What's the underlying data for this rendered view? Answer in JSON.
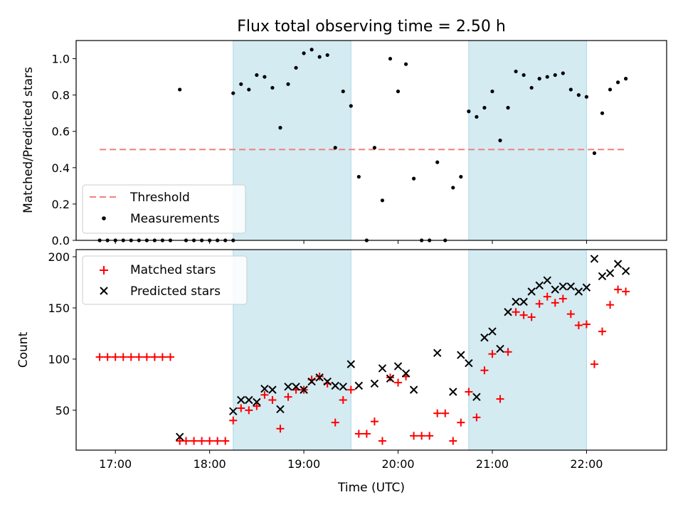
{
  "chart_data": {
    "title": "Flux total observing time = 2.50 h",
    "xlabel": "Time (UTC)",
    "x_ticks": [
      "17:00",
      "18:00",
      "19:00",
      "20:00",
      "21:00",
      "22:00"
    ],
    "x_range": [
      "16:35",
      "22:51"
    ],
    "shaded_intervals": [
      [
        "18:15",
        "19:30"
      ],
      [
        "20:45",
        "22:00"
      ]
    ],
    "shade_color": "#d4ebf2",
    "panels": [
      {
        "type": "scatter",
        "ylabel": "Matched/Predicted stars",
        "ylim": [
          0,
          1.1
        ],
        "yticks": [
          0.0,
          0.2,
          0.4,
          0.6,
          0.8,
          1.0
        ],
        "legend_position": "lower-left",
        "threshold": {
          "name": "Threshold",
          "value": 0.5,
          "x_start": "16:50",
          "x_end": "22:26",
          "color": "#f08080"
        },
        "series": [
          {
            "name": "Measurements",
            "color": "#000000",
            "points": [
              [
                "16:50",
                0.0
              ],
              [
                "16:55",
                0.0
              ],
              [
                "17:00",
                0.0
              ],
              [
                "17:05",
                0.0
              ],
              [
                "17:10",
                0.0
              ],
              [
                "17:15",
                0.0
              ],
              [
                "17:20",
                0.0
              ],
              [
                "17:25",
                0.0
              ],
              [
                "17:30",
                0.0
              ],
              [
                "17:35",
                0.0
              ],
              [
                "17:41",
                0.83
              ],
              [
                "17:45",
                0.0
              ],
              [
                "17:50",
                0.0
              ],
              [
                "17:55",
                0.0
              ],
              [
                "18:00",
                0.0
              ],
              [
                "18:05",
                0.0
              ],
              [
                "18:10",
                0.0
              ],
              [
                "18:15",
                0.0
              ],
              [
                "18:15",
                0.81
              ],
              [
                "18:20",
                0.86
              ],
              [
                "18:25",
                0.83
              ],
              [
                "18:30",
                0.91
              ],
              [
                "18:35",
                0.9
              ],
              [
                "18:40",
                0.84
              ],
              [
                "18:45",
                0.62
              ],
              [
                "18:50",
                0.86
              ],
              [
                "18:55",
                0.95
              ],
              [
                "19:00",
                1.03
              ],
              [
                "19:05",
                1.05
              ],
              [
                "19:10",
                1.01
              ],
              [
                "19:15",
                1.02
              ],
              [
                "19:20",
                0.51
              ],
              [
                "19:25",
                0.82
              ],
              [
                "19:30",
                0.74
              ],
              [
                "19:35",
                0.35
              ],
              [
                "19:40",
                0.0
              ],
              [
                "19:45",
                0.51
              ],
              [
                "19:50",
                0.22
              ],
              [
                "19:55",
                1.0
              ],
              [
                "20:00",
                0.82
              ],
              [
                "20:05",
                0.97
              ],
              [
                "20:10",
                0.34
              ],
              [
                "20:15",
                0.0
              ],
              [
                "20:20",
                0.0
              ],
              [
                "20:25",
                0.43
              ],
              [
                "20:30",
                0.0
              ],
              [
                "20:35",
                0.29
              ],
              [
                "20:40",
                0.35
              ],
              [
                "20:45",
                0.71
              ],
              [
                "20:50",
                0.68
              ],
              [
                "20:55",
                0.73
              ],
              [
                "21:00",
                0.82
              ],
              [
                "21:05",
                0.55
              ],
              [
                "21:10",
                0.73
              ],
              [
                "21:15",
                0.93
              ],
              [
                "21:20",
                0.91
              ],
              [
                "21:25",
                0.84
              ],
              [
                "21:30",
                0.89
              ],
              [
                "21:35",
                0.9
              ],
              [
                "21:40",
                0.91
              ],
              [
                "21:45",
                0.92
              ],
              [
                "21:50",
                0.83
              ],
              [
                "21:55",
                0.8
              ],
              [
                "22:00",
                0.79
              ],
              [
                "22:05",
                0.48
              ],
              [
                "22:10",
                0.7
              ],
              [
                "22:15",
                0.83
              ],
              [
                "22:20",
                0.87
              ],
              [
                "22:25",
                0.89
              ]
            ]
          }
        ]
      },
      {
        "type": "scatter",
        "ylabel": "Count",
        "ylim": [
          11,
          207
        ],
        "yticks": [
          50,
          100,
          150,
          200
        ],
        "legend_position": "upper-left",
        "series": [
          {
            "name": "Matched stars",
            "marker": "+",
            "color": "#ff0000",
            "points": [
              [
                "16:50",
                102
              ],
              [
                "16:55",
                102
              ],
              [
                "17:00",
                102
              ],
              [
                "17:05",
                102
              ],
              [
                "17:10",
                102
              ],
              [
                "17:15",
                102
              ],
              [
                "17:20",
                102
              ],
              [
                "17:25",
                102
              ],
              [
                "17:30",
                102
              ],
              [
                "17:35",
                102
              ],
              [
                "17:41",
                20
              ],
              [
                "17:45",
                20
              ],
              [
                "17:50",
                20
              ],
              [
                "17:55",
                20
              ],
              [
                "18:00",
                20
              ],
              [
                "18:05",
                20
              ],
              [
                "18:10",
                20
              ],
              [
                "18:15",
                40
              ],
              [
                "18:20",
                52
              ],
              [
                "18:25",
                50
              ],
              [
                "18:30",
                54
              ],
              [
                "18:35",
                65
              ],
              [
                "18:40",
                60
              ],
              [
                "18:45",
                32
              ],
              [
                "18:50",
                63
              ],
              [
                "18:55",
                70
              ],
              [
                "19:00",
                70
              ],
              [
                "19:05",
                80
              ],
              [
                "19:10",
                83
              ],
              [
                "19:15",
                76
              ],
              [
                "19:20",
                38
              ],
              [
                "19:25",
                60
              ],
              [
                "19:30",
                70
              ],
              [
                "19:35",
                27
              ],
              [
                "19:40",
                27
              ],
              [
                "19:45",
                39
              ],
              [
                "19:50",
                20
              ],
              [
                "19:55",
                82
              ],
              [
                "20:00",
                77
              ],
              [
                "20:05",
                83
              ],
              [
                "20:10",
                25
              ],
              [
                "20:15",
                25
              ],
              [
                "20:20",
                25
              ],
              [
                "20:25",
                47
              ],
              [
                "20:30",
                47
              ],
              [
                "20:35",
                20
              ],
              [
                "20:40",
                38
              ],
              [
                "20:45",
                68
              ],
              [
                "20:50",
                43
              ],
              [
                "20:55",
                89
              ],
              [
                "21:00",
                105
              ],
              [
                "21:05",
                61
              ],
              [
                "21:10",
                107
              ],
              [
                "21:15",
                146
              ],
              [
                "21:20",
                143
              ],
              [
                "21:25",
                141
              ],
              [
                "21:30",
                154
              ],
              [
                "21:35",
                161
              ],
              [
                "21:40",
                155
              ],
              [
                "21:45",
                159
              ],
              [
                "21:50",
                144
              ],
              [
                "21:55",
                133
              ],
              [
                "22:00",
                134
              ],
              [
                "22:05",
                95
              ],
              [
                "22:10",
                127
              ],
              [
                "22:15",
                153
              ],
              [
                "22:20",
                168
              ],
              [
                "22:25",
                166
              ]
            ]
          },
          {
            "name": "Predicted stars",
            "marker": "x",
            "color": "#000000",
            "points": [
              [
                "17:41",
                24
              ],
              [
                "18:15",
                49
              ],
              [
                "18:20",
                60
              ],
              [
                "18:25",
                60
              ],
              [
                "18:30",
                58
              ],
              [
                "18:35",
                71
              ],
              [
                "18:40",
                70
              ],
              [
                "18:45",
                51
              ],
              [
                "18:50",
                73
              ],
              [
                "18:55",
                73
              ],
              [
                "19:00",
                70
              ],
              [
                "19:05",
                78
              ],
              [
                "19:10",
                82
              ],
              [
                "19:15",
                78
              ],
              [
                "19:20",
                74
              ],
              [
                "19:25",
                73
              ],
              [
                "19:30",
                95
              ],
              [
                "19:35",
                74
              ],
              [
                "19:45",
                76
              ],
              [
                "19:50",
                91
              ],
              [
                "19:55",
                81
              ],
              [
                "20:00",
                93
              ],
              [
                "20:05",
                86
              ],
              [
                "20:10",
                70
              ],
              [
                "20:25",
                106
              ],
              [
                "20:35",
                68
              ],
              [
                "20:40",
                104
              ],
              [
                "20:45",
                96
              ],
              [
                "20:50",
                63
              ],
              [
                "20:55",
                121
              ],
              [
                "21:00",
                127
              ],
              [
                "21:05",
                110
              ],
              [
                "21:10",
                146
              ],
              [
                "21:15",
                156
              ],
              [
                "21:20",
                156
              ],
              [
                "21:25",
                166
              ],
              [
                "21:30",
                172
              ],
              [
                "21:35",
                177
              ],
              [
                "21:40",
                168
              ],
              [
                "21:45",
                171
              ],
              [
                "21:50",
                171
              ],
              [
                "21:55",
                166
              ],
              [
                "22:00",
                170
              ],
              [
                "22:05",
                198
              ],
              [
                "22:10",
                181
              ],
              [
                "22:15",
                184
              ],
              [
                "22:20",
                193
              ],
              [
                "22:25",
                186
              ]
            ]
          }
        ]
      }
    ]
  }
}
